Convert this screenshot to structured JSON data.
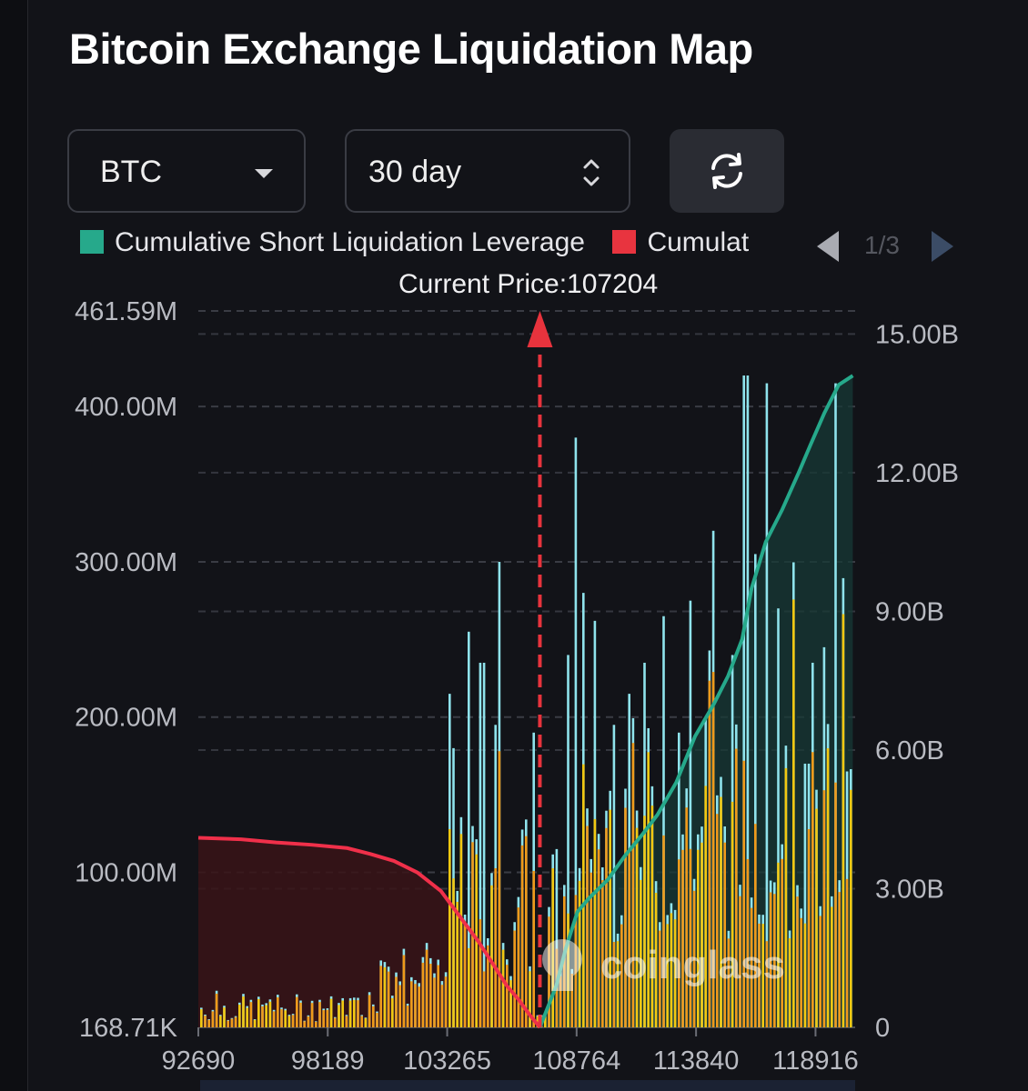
{
  "title": "Bitcoin Exchange Liquidation Map",
  "controls": {
    "coin": "BTC",
    "period": "30 day",
    "refresh_icon": "refresh-icon"
  },
  "legend": {
    "items": [
      {
        "label": "Cumulative Short Liquidation Leverage",
        "color": "#26a98b"
      },
      {
        "label": "Cumulat",
        "color": "#e8343f"
      }
    ],
    "page": "1/3"
  },
  "current_price_label": "Current Price:107204",
  "watermark": "coinglass",
  "colors": {
    "short_line": "#26a98b",
    "long_line": "#f0304a",
    "bar_cyan": "#8fe3ec",
    "bar_orange": "#ef9a1a",
    "bar_yellow": "#f2c811",
    "marker": "#e8333d"
  },
  "chart_data": {
    "type": "bar",
    "x_ticks": [
      "92690",
      "98189",
      "103265",
      "108764",
      "113840",
      "118916"
    ],
    "x_range": [
      92690,
      120600
    ],
    "current_price": 107204,
    "left_axis": {
      "ticks": [
        "168.71K",
        "100.00M",
        "200.00M",
        "300.00M",
        "400.00M",
        "461.59M"
      ],
      "range": [
        0.16871,
        461.59
      ],
      "unit": "M"
    },
    "right_axis": {
      "ticks": [
        "0",
        "3.00B",
        "6.00B",
        "9.00B",
        "12.00B",
        "15.00B"
      ],
      "range": [
        0,
        15.5
      ],
      "unit": "B"
    },
    "series": [
      {
        "name": "Cumulative Short Liquidation Leverage",
        "type": "area-line",
        "axis": "right",
        "points": [
          [
            107204,
            0
          ],
          [
            107900,
            0.9
          ],
          [
            108300,
            1.7
          ],
          [
            108800,
            2.5
          ],
          [
            109300,
            2.8
          ],
          [
            110100,
            3.2
          ],
          [
            110800,
            3.7
          ],
          [
            111600,
            4.2
          ],
          [
            112200,
            4.6
          ],
          [
            113000,
            5.3
          ],
          [
            113800,
            6.3
          ],
          [
            114600,
            7.0
          ],
          [
            115200,
            7.6
          ],
          [
            115800,
            8.4
          ],
          [
            116200,
            9.5
          ],
          [
            116800,
            10.5
          ],
          [
            117500,
            11.2
          ],
          [
            118200,
            12.0
          ],
          [
            118700,
            12.6
          ],
          [
            119300,
            13.3
          ],
          [
            119900,
            13.9
          ],
          [
            120500,
            14.1
          ]
        ]
      },
      {
        "name": "Cumulat",
        "type": "area-line",
        "axis": "right",
        "points": [
          [
            92690,
            4.1
          ],
          [
            94500,
            4.07
          ],
          [
            96000,
            4.0
          ],
          [
            97500,
            3.95
          ],
          [
            99000,
            3.88
          ],
          [
            100000,
            3.75
          ],
          [
            101000,
            3.6
          ],
          [
            102000,
            3.35
          ],
          [
            103000,
            2.95
          ],
          [
            103800,
            2.4
          ],
          [
            104600,
            1.85
          ],
          [
            105300,
            1.3
          ],
          [
            105800,
            0.9
          ],
          [
            106300,
            0.6
          ],
          [
            106800,
            0.25
          ],
          [
            107204,
            0
          ]
        ]
      },
      {
        "name": "Liquidation Leverage",
        "type": "bar",
        "axis": "left",
        "spikes": [
          [
            103300,
            215
          ],
          [
            103500,
            180
          ],
          [
            104100,
            255
          ],
          [
            104700,
            235
          ],
          [
            105200,
            195
          ],
          [
            105500,
            300
          ],
          [
            106900,
            190
          ],
          [
            107800,
            115
          ],
          [
            108400,
            240
          ],
          [
            108700,
            380
          ],
          [
            109000,
            280
          ],
          [
            109500,
            262
          ],
          [
            110300,
            195
          ],
          [
            110900,
            215
          ],
          [
            111600,
            235
          ],
          [
            112400,
            265
          ],
          [
            113000,
            190
          ],
          [
            113500,
            275
          ],
          [
            114200,
            200
          ],
          [
            114600,
            320
          ],
          [
            115300,
            240
          ],
          [
            115900,
            420
          ],
          [
            116300,
            305
          ],
          [
            116800,
            415
          ],
          [
            117300,
            270
          ],
          [
            117900,
            225
          ],
          [
            118500,
            170
          ],
          [
            118800,
            235
          ],
          [
            119200,
            245
          ],
          [
            119700,
            415
          ],
          [
            120200,
            165
          ]
        ]
      }
    ],
    "grid": true
  }
}
